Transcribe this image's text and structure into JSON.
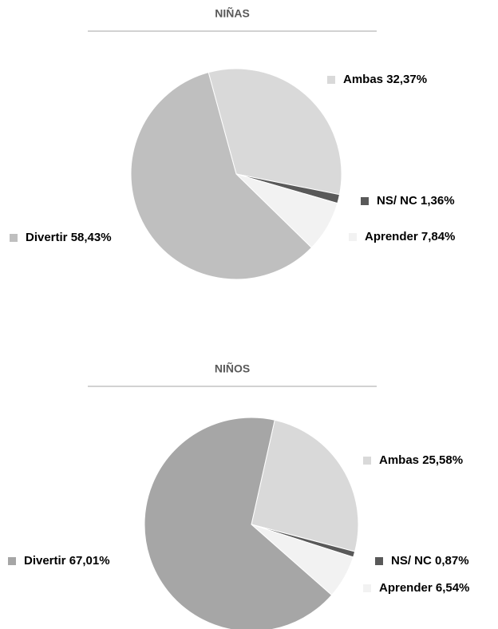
{
  "chart_data": [
    {
      "type": "pie",
      "title": "NIÑAS",
      "categories": [
        "Ambas",
        "NS/ NC",
        "Aprender",
        "Divertir"
      ],
      "values": [
        32.37,
        1.36,
        7.84,
        58.43
      ],
      "value_labels": [
        "32,37%",
        "1,36%",
        "7,84%",
        "58,43%"
      ],
      "colors": [
        "#d9d9d9",
        "#595959",
        "#f2f2f2",
        "#bfbfbf"
      ]
    },
    {
      "type": "pie",
      "title": "NIÑOS",
      "categories": [
        "Ambas",
        "NS/ NC",
        "Aprender",
        "Divertir"
      ],
      "values": [
        25.58,
        0.87,
        6.54,
        67.01
      ],
      "value_labels": [
        "25,58%",
        "0,87%",
        "6,54%",
        "67,01%"
      ],
      "colors": [
        "#d9d9d9",
        "#595959",
        "#f2f2f2",
        "#a6a6a6"
      ]
    }
  ]
}
